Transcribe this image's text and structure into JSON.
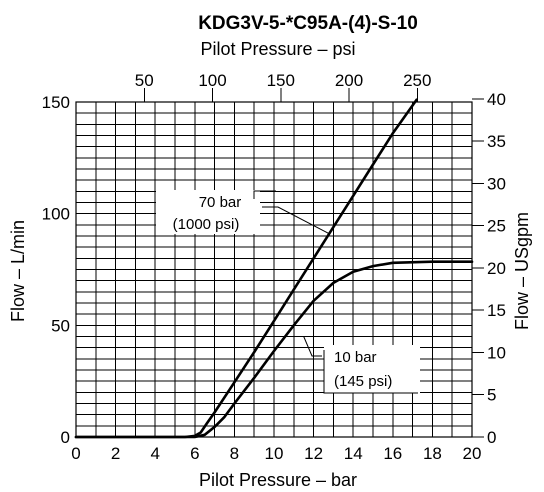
{
  "chart_data": {
    "type": "line",
    "title": "KDG3V-5-*C95A-(4)-S-10",
    "x_bottom": {
      "label": "Pilot Pressure – bar",
      "range": [
        0,
        20
      ],
      "ticks": [
        0,
        2,
        4,
        6,
        8,
        10,
        12,
        14,
        16,
        18,
        20
      ]
    },
    "x_top": {
      "label": "Pilot Pressure – psi",
      "ticks": [
        50,
        100,
        150,
        200,
        250
      ]
    },
    "y_left": {
      "label": "Flow – L/min",
      "range": [
        0,
        150
      ],
      "ticks": [
        0,
        50,
        100,
        150
      ]
    },
    "y_right": {
      "label": "Flow – USgpm",
      "ticks": [
        0,
        5,
        10,
        15,
        20,
        25,
        30,
        35,
        40
      ]
    },
    "grid": true,
    "series": [
      {
        "name": "70 bar (1000 psi)",
        "points": [
          [
            0,
            0
          ],
          [
            5.5,
            0
          ],
          [
            6,
            0.5
          ],
          [
            6.3,
            2
          ],
          [
            6.6,
            6
          ],
          [
            7,
            11
          ],
          [
            8,
            24.5
          ],
          [
            9,
            38
          ],
          [
            10,
            52
          ],
          [
            11,
            66
          ],
          [
            12,
            80
          ],
          [
            13,
            94
          ],
          [
            14,
            108
          ],
          [
            15,
            122
          ],
          [
            16,
            136
          ],
          [
            17.2,
            151
          ]
        ]
      },
      {
        "name": "10 bar (145 psi)",
        "points": [
          [
            0,
            0
          ],
          [
            6,
            0
          ],
          [
            6.5,
            1
          ],
          [
            7,
            4.5
          ],
          [
            7.5,
            9
          ],
          [
            8,
            15
          ],
          [
            9,
            26.5
          ],
          [
            10,
            38.5
          ],
          [
            11,
            50
          ],
          [
            12,
            61
          ],
          [
            13,
            69
          ],
          [
            14,
            74
          ],
          [
            15,
            76.5
          ],
          [
            16,
            78
          ],
          [
            18,
            78.5
          ],
          [
            20,
            78.5
          ]
        ]
      }
    ],
    "annotations": [
      {
        "line1": "70 bar",
        "line2": "(1000 psi)",
        "points_to": [
          12.8,
          91
        ]
      },
      {
        "line1": "10 bar",
        "line2": "(145 psi)",
        "points_to": [
          11.5,
          45
        ]
      }
    ]
  }
}
